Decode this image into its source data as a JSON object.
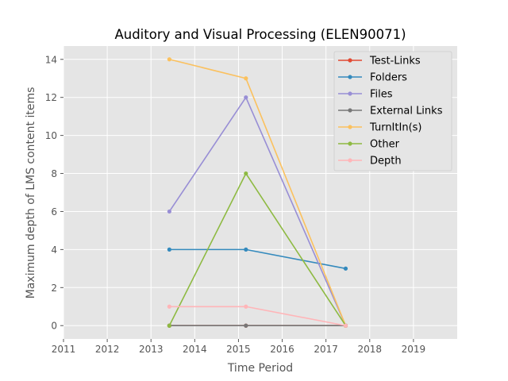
{
  "chart_data": {
    "type": "line",
    "title": "Auditory and Visual Processing (ELEN90071)",
    "xlabel": "Time Period",
    "ylabel": "Maximum depth of LMS content items",
    "xlim": [
      2011,
      2020
    ],
    "ylim": [
      -0.7,
      14.7
    ],
    "xticks": [
      2011,
      2012,
      2013,
      2014,
      2015,
      2016,
      2017,
      2018,
      2019
    ],
    "yticks": [
      0,
      2,
      4,
      6,
      8,
      10,
      12,
      14
    ],
    "grid": true,
    "legend_position": "top-right",
    "x": [
      2013.42,
      2015.17,
      2017.45
    ],
    "series": [
      {
        "name": "Test-Links",
        "color": "#E24A33",
        "values": [
          0,
          0,
          0
        ]
      },
      {
        "name": "Folders",
        "color": "#348ABD",
        "values": [
          4,
          4,
          3
        ]
      },
      {
        "name": "Files",
        "color": "#988ED5",
        "values": [
          6,
          12,
          0
        ]
      },
      {
        "name": "External Links",
        "color": "#777777",
        "values": [
          0,
          0,
          0
        ]
      },
      {
        "name": "TurnItIn(s)",
        "color": "#FBC15E",
        "values": [
          14,
          13,
          0
        ]
      },
      {
        "name": "Other",
        "color": "#8EBA42",
        "values": [
          0,
          8,
          0
        ]
      },
      {
        "name": "Depth",
        "color": "#FFB5B8",
        "values": [
          1,
          1,
          0
        ]
      }
    ]
  }
}
